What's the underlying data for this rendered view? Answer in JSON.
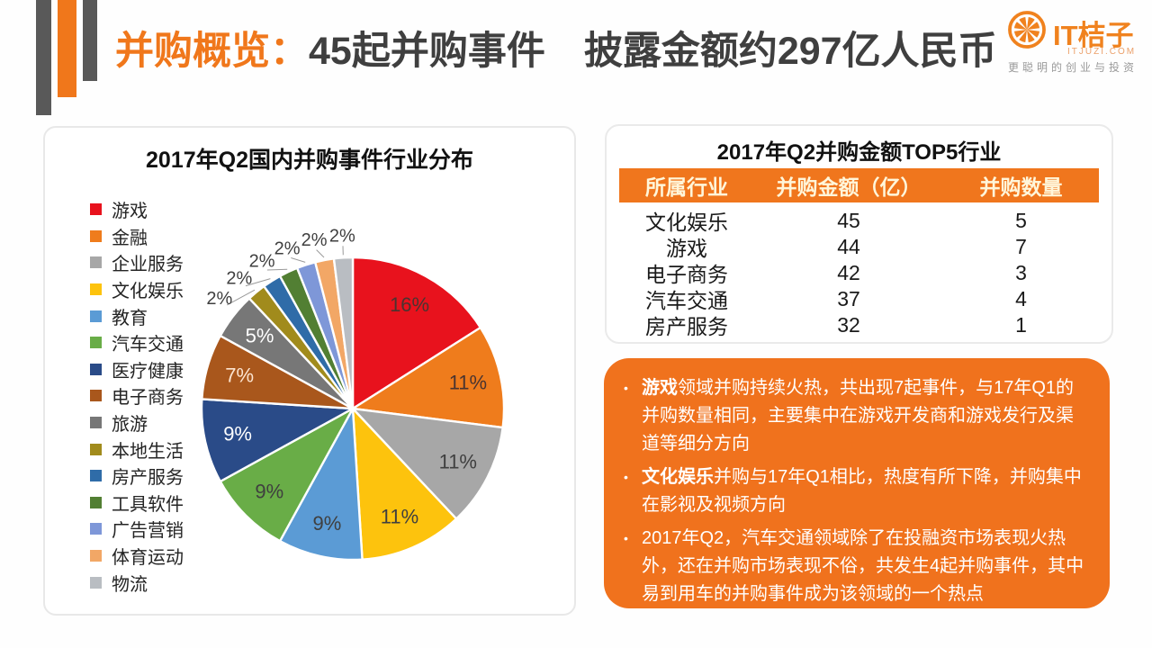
{
  "header": {
    "title_highlight": "并购概览：",
    "title_rest": "45起并购事件　披露金额约297亿人民币"
  },
  "logo": {
    "name": "IT桔子",
    "domain": "ITJUZI.COM",
    "tagline": "更聪明的创业与投资"
  },
  "colors": {
    "accent_orange": "#f0771b",
    "bar_gray": "#595959",
    "table_header_bg": "#f0761d",
    "notes_bg": "#f0721d",
    "notes_text": "#ffffff"
  },
  "chart_data": {
    "type": "pie",
    "title": "2017年Q2国内并购事件行业分布",
    "legend_position": "left",
    "start_angle_deg": 0,
    "direction": "clockwise",
    "slices": [
      {
        "label": "游戏",
        "value": 16,
        "color": "#e8121d",
        "label_color": "#4a3430"
      },
      {
        "label": "金融",
        "value": 11,
        "color": "#ef7c1c",
        "label_color": "#4a3430"
      },
      {
        "label": "企业服务",
        "value": 11,
        "color": "#a7a7a7",
        "label_color": "#3f3f3f"
      },
      {
        "label": "文化娱乐",
        "value": 11,
        "color": "#fdc30d",
        "label_color": "#3f3f3f"
      },
      {
        "label": "教育",
        "value": 9,
        "color": "#5b9bd5",
        "label_color": "#3f3f3f"
      },
      {
        "label": "汽车交通",
        "value": 9,
        "color": "#69ad47",
        "label_color": "#3f3f3f"
      },
      {
        "label": "医疗健康",
        "value": 9,
        "color": "#2a4b88",
        "label_color": "#ffffff"
      },
      {
        "label": "电子商务",
        "value": 7,
        "color": "#a9571c",
        "label_color": "#fce4d0"
      },
      {
        "label": "旅游",
        "value": 5,
        "color": "#777777",
        "label_color": "#ffffff"
      },
      {
        "label": "本地生活",
        "value": 2,
        "color": "#a18b1c",
        "label_color": "#3f3f3f"
      },
      {
        "label": "房产服务",
        "value": 2,
        "color": "#2f6ca8",
        "label_color": "#3f3f3f"
      },
      {
        "label": "工具软件",
        "value": 2,
        "color": "#527f33",
        "label_color": "#3f3f3f"
      },
      {
        "label": "广告营销",
        "value": 2,
        "color": "#7e97d8",
        "label_color": "#3f3f3f"
      },
      {
        "label": "体育运动",
        "value": 2,
        "color": "#f2a766",
        "label_color": "#3f3f3f"
      },
      {
        "label": "物流",
        "value": 2,
        "color": "#b9bdc2",
        "label_color": "#3f3f3f"
      }
    ]
  },
  "table": {
    "title": "2017年Q2并购金额TOP5行业",
    "headers": [
      "所属行业",
      "并购金额（亿）",
      "并购数量"
    ],
    "rows": [
      [
        "文化娱乐",
        "45",
        "5"
      ],
      [
        "游戏",
        "44",
        "7"
      ],
      [
        "电子商务",
        "42",
        "3"
      ],
      [
        "汽车交通",
        "37",
        "4"
      ],
      [
        "房产服务",
        "32",
        "1"
      ]
    ]
  },
  "notes": {
    "bullets": [
      {
        "bold": "游戏",
        "text": "领域并购持续火热，共出现7起事件，与17年Q1的并购数量相同，主要集中在游戏开发商和游戏发行及渠道等细分方向"
      },
      {
        "bold": "文化娱乐",
        "text": "并购与17年Q1相比，热度有所下降，并购集中在影视及视频方向"
      },
      {
        "bold": "",
        "text": "2017年Q2，汽车交通领域除了在投融资市场表现火热外，还在并购市场表现不俗，共发生4起并购事件，其中易到用车的并购事件成为该领域的一个热点"
      }
    ]
  }
}
